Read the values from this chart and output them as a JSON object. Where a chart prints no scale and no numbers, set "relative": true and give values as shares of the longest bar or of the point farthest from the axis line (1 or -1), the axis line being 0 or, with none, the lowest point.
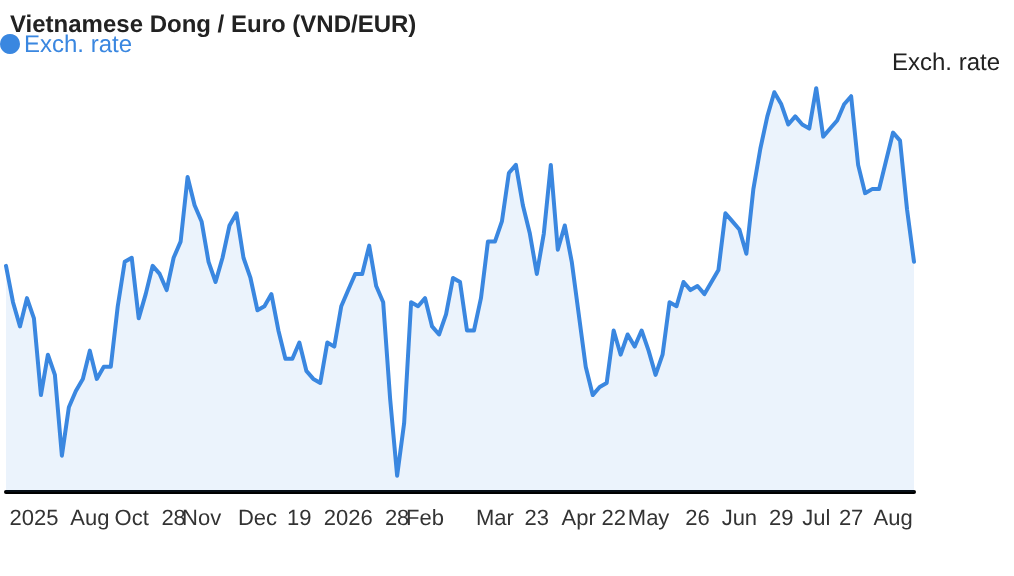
{
  "chart_data": {
    "type": "area",
    "title": "Vietnamese Dong / Euro (VND/EUR)",
    "ylabel": "Exch. rate",
    "relative": true,
    "legend": "top left",
    "grid": false,
    "marker": "none",
    "line_style": "solid",
    "categories": [
      null,
      null,
      null,
      null,
      "2025",
      null,
      null,
      null,
      null,
      null,
      null,
      null,
      "Aug",
      null,
      null,
      null,
      null,
      null,
      "Oct",
      null,
      null,
      null,
      null,
      null,
      "28",
      null,
      null,
      null,
      "Nov",
      null,
      null,
      null,
      null,
      null,
      null,
      null,
      "Dec",
      null,
      null,
      null,
      null,
      null,
      "19",
      null,
      null,
      null,
      null,
      null,
      null,
      "2026",
      null,
      null,
      null,
      null,
      null,
      null,
      "28",
      null,
      null,
      null,
      "Feb",
      null,
      null,
      null,
      null,
      null,
      null,
      null,
      null,
      null,
      "Mar",
      null,
      null,
      null,
      null,
      null,
      "23",
      null,
      null,
      null,
      null,
      null,
      "Apr",
      null,
      null,
      null,
      null,
      "22",
      null,
      null,
      null,
      null,
      "May",
      null,
      null,
      null,
      null,
      null,
      null,
      "26",
      null,
      null,
      null,
      null,
      null,
      "Jun",
      null,
      null,
      null,
      null,
      null,
      "29",
      null,
      null,
      null,
      null,
      "Jul",
      null,
      null,
      null,
      null,
      "27",
      null,
      null,
      null,
      null,
      null,
      "Aug",
      null,
      null,
      null
    ],
    "series": [
      {
        "name": "Exch. rate",
        "color": "#3a87e0",
        "values": [
          0.56,
          0.47,
          0.41,
          0.48,
          0.43,
          0.24,
          0.34,
          0.29,
          0.09,
          0.21,
          0.25,
          0.28,
          0.35,
          0.28,
          0.31,
          0.31,
          0.46,
          0.57,
          0.58,
          0.43,
          0.49,
          0.56,
          0.54,
          0.5,
          0.58,
          0.62,
          0.78,
          0.71,
          0.67,
          0.57,
          0.52,
          0.58,
          0.66,
          0.69,
          0.58,
          0.53,
          0.45,
          0.46,
          0.49,
          0.4,
          0.33,
          0.33,
          0.37,
          0.3,
          0.28,
          0.27,
          0.37,
          0.36,
          0.46,
          0.5,
          0.54,
          0.54,
          0.61,
          0.51,
          0.47,
          0.23,
          0.04,
          0.17,
          0.47,
          0.46,
          0.48,
          0.41,
          0.39,
          0.44,
          0.53,
          0.52,
          0.4,
          0.4,
          0.48,
          0.62,
          0.62,
          0.67,
          0.79,
          0.81,
          0.71,
          0.64,
          0.54,
          0.64,
          0.81,
          0.6,
          0.66,
          0.57,
          0.44,
          0.31,
          0.24,
          0.26,
          0.27,
          0.4,
          0.34,
          0.39,
          0.36,
          0.4,
          0.35,
          0.29,
          0.34,
          0.47,
          0.46,
          0.52,
          0.5,
          0.51,
          0.49,
          0.52,
          0.55,
          0.69,
          0.67,
          0.65,
          0.59,
          0.75,
          0.85,
          0.93,
          0.99,
          0.96,
          0.91,
          0.93,
          0.91,
          0.9,
          1,
          0.88,
          0.9,
          0.92,
          0.96,
          0.98,
          0.81,
          0.74,
          0.75,
          0.75,
          0.82,
          0.89,
          0.87,
          0.7,
          0.57
        ]
      }
    ]
  }
}
